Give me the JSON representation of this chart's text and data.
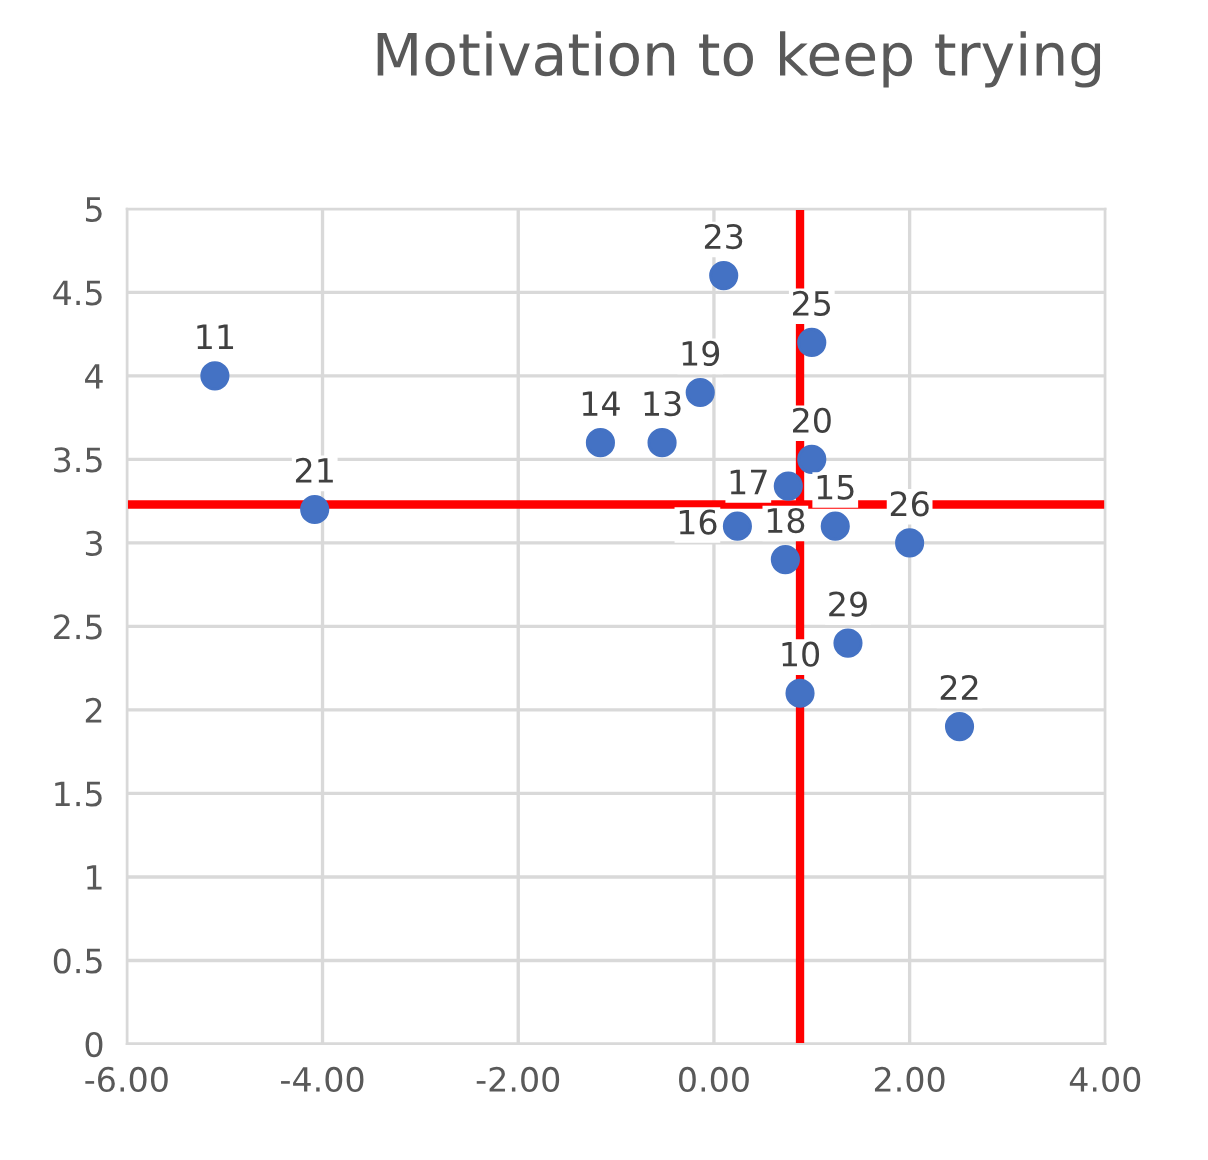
{
  "chart_data": {
    "type": "scatter",
    "title": "Motivation to keep trying",
    "x": [
      -5.1,
      -4.08,
      -1.16,
      -0.53,
      -0.14,
      0.1,
      1.0,
      1.0,
      0.76,
      0.73,
      0.24,
      1.24,
      2.0,
      1.37,
      0.88,
      2.51
    ],
    "series": [
      {
        "color": "#4472c4",
        "values": [
          4.0,
          3.2,
          3.6,
          3.6,
          3.9,
          4.6,
          4.2,
          3.5,
          3.34,
          2.9,
          3.1,
          3.1,
          3.0,
          2.4,
          2.1,
          1.9
        ]
      }
    ],
    "annotations": [
      {
        "text": "11",
        "x": -5.1,
        "y": 4.0
      },
      {
        "text": "21",
        "x": -4.08,
        "y": 3.2
      },
      {
        "text": "14",
        "x": -1.16,
        "y": 3.6
      },
      {
        "text": "13",
        "x": -0.53,
        "y": 3.6
      },
      {
        "text": "19",
        "x": -0.14,
        "y": 3.9
      },
      {
        "text": "23",
        "x": 0.1,
        "y": 4.6
      },
      {
        "text": "25",
        "x": 1.0,
        "y": 4.2
      },
      {
        "text": "20",
        "x": 1.0,
        "y": 3.5
      },
      {
        "text": "17",
        "x": 0.76,
        "y": 3.34
      },
      {
        "text": "18",
        "x": 0.73,
        "y": 2.9
      },
      {
        "text": "16",
        "x": 0.24,
        "y": 3.1
      },
      {
        "text": "15",
        "x": 1.24,
        "y": 3.1
      },
      {
        "text": "26",
        "x": 2.0,
        "y": 3.0
      },
      {
        "text": "29",
        "x": 1.37,
        "y": 2.4
      },
      {
        "text": "10",
        "x": 0.88,
        "y": 2.1
      },
      {
        "text": "22",
        "x": 2.51,
        "y": 1.9
      }
    ],
    "ref_lines": [
      {
        "axis": "x",
        "value": 0.88,
        "color": "#ff0000"
      },
      {
        "axis": "y",
        "value": 3.23,
        "color": "#ff0000"
      }
    ],
    "xlim": [
      -6,
      4
    ],
    "xticks": [
      {
        "value": -6,
        "label": "-6.00"
      },
      {
        "value": -4,
        "label": "-4.00"
      },
      {
        "value": -2,
        "label": "-2.00"
      },
      {
        "value": 0,
        "label": "0.00"
      },
      {
        "value": 2,
        "label": "2.00"
      },
      {
        "value": 4,
        "label": "4.00"
      }
    ],
    "ylim": [
      0,
      5
    ],
    "yticks": [
      0,
      0.5,
      1,
      1.5,
      2,
      2.5,
      3,
      3.5,
      4,
      4.5,
      5
    ],
    "grid": true,
    "marker": "circle"
  }
}
